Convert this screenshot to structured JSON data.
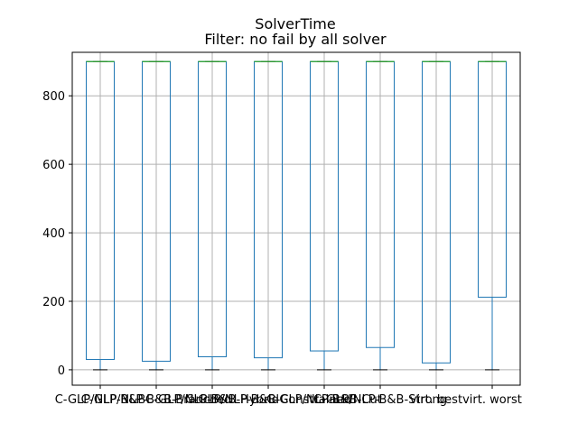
{
  "chart_data": {
    "type": "box",
    "title": "SolverTime",
    "subtitle": "Filter: no fail by all solver",
    "xlabel": "",
    "ylabel": "",
    "ylim": [
      -45,
      927
    ],
    "yticks": [
      0,
      200,
      400,
      600,
      800
    ],
    "grid": true,
    "categories": [
      "C-GLP/NLP-B&B",
      "C-GLP/NLP-B&B-Branched",
      "C-GLP/NLP-B&B-Hybrid",
      "C-GLP/NLP-B&B-Constrained",
      "C-GLP/NLP-B&B-Cut",
      "C-GLP/NLP-B&B-Strong",
      "virt. best",
      "virt. worst"
    ],
    "boxes": [
      {
        "min": 0,
        "q1": 30,
        "median": 900,
        "q3": 900,
        "max": 900
      },
      {
        "min": 0,
        "q1": 25,
        "median": 900,
        "q3": 900,
        "max": 900
      },
      {
        "min": 0,
        "q1": 38,
        "median": 900,
        "q3": 900,
        "max": 900
      },
      {
        "min": 0,
        "q1": 35,
        "median": 900,
        "q3": 900,
        "max": 900
      },
      {
        "min": 0,
        "q1": 55,
        "median": 900,
        "q3": 900,
        "max": 900
      },
      {
        "min": 0,
        "q1": 65,
        "median": 900,
        "q3": 900,
        "max": 900
      },
      {
        "min": 0,
        "q1": 20,
        "median": 900,
        "q3": 900,
        "max": 900
      },
      {
        "min": 0,
        "q1": 212,
        "median": 900,
        "q3": 900,
        "max": 900
      }
    ],
    "colors": {
      "box": "#1f77b4",
      "median": "#2ca02c",
      "cap": "#000000",
      "grid": "#b0b0b0"
    }
  }
}
